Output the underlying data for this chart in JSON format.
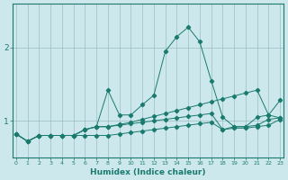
{
  "title": "",
  "xlabel": "Humidex (Indice chaleur)",
  "bg_color": "#cce8ec",
  "grid_color": "#9abfc4",
  "line_color": "#1a7a6e",
  "x_ticks": [
    0,
    1,
    2,
    3,
    4,
    5,
    6,
    7,
    8,
    9,
    10,
    11,
    12,
    13,
    14,
    15,
    16,
    17,
    18,
    19,
    20,
    21,
    22,
    23
  ],
  "y_ticks": [
    1,
    2
  ],
  "xlim": [
    -0.3,
    23.3
  ],
  "ylim": [
    0.5,
    2.6
  ],
  "series": [
    [
      0.82,
      0.72,
      0.8,
      0.8,
      0.8,
      0.8,
      0.88,
      0.92,
      1.42,
      1.08,
      1.08,
      1.22,
      1.35,
      1.95,
      2.15,
      2.28,
      2.08,
      1.55,
      1.05,
      0.92,
      0.92,
      1.05,
      1.08,
      1.28
    ],
    [
      0.82,
      0.72,
      0.8,
      0.8,
      0.8,
      0.8,
      0.88,
      0.92,
      0.92,
      0.95,
      0.98,
      1.02,
      1.06,
      1.1,
      1.14,
      1.18,
      1.22,
      1.26,
      1.3,
      1.34,
      1.38,
      1.42,
      1.08,
      1.04
    ],
    [
      0.82,
      0.72,
      0.8,
      0.8,
      0.8,
      0.8,
      0.88,
      0.92,
      0.92,
      0.94,
      0.96,
      0.98,
      1.0,
      1.02,
      1.04,
      1.06,
      1.08,
      1.1,
      0.88,
      0.92,
      0.92,
      0.94,
      1.02,
      1.04
    ],
    [
      0.82,
      0.72,
      0.8,
      0.8,
      0.8,
      0.8,
      0.8,
      0.8,
      0.8,
      0.82,
      0.84,
      0.86,
      0.88,
      0.9,
      0.92,
      0.94,
      0.96,
      0.98,
      0.88,
      0.9,
      0.9,
      0.92,
      0.94,
      1.02
    ]
  ]
}
